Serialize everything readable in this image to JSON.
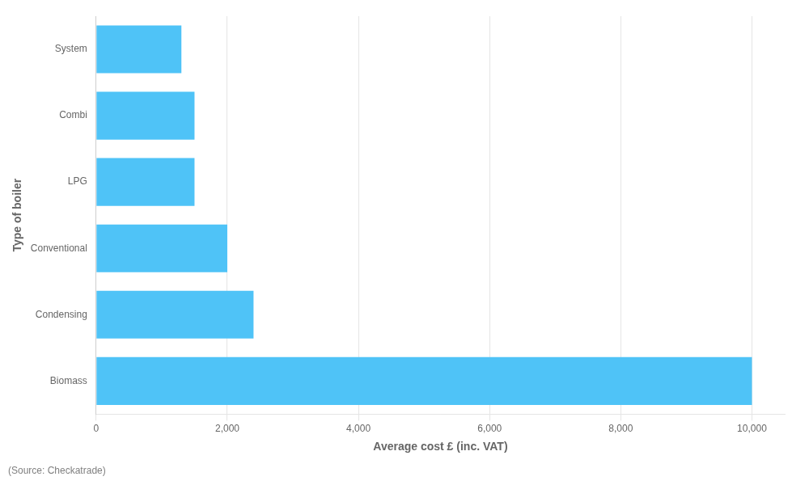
{
  "chart_data": {
    "type": "bar",
    "orientation": "horizontal",
    "categories": [
      "Biomass",
      "Condensing",
      "Conventional",
      "LPG",
      "Combi",
      "System"
    ],
    "values": [
      10000,
      2400,
      2000,
      1500,
      1500,
      1300
    ],
    "color": "#4FC3F7",
    "xlabel": "Average cost £ (inc. VAT)",
    "ylabel": "Type of boiler",
    "xlim": [
      0,
      10500
    ],
    "xticks": [
      0,
      {
        "value": 2000,
        "label": "2,000"
      },
      {
        "value": 4000,
        "label": "4,000"
      },
      {
        "value": 6000,
        "label": "6,000"
      },
      {
        "value": 8000,
        "label": "8,000"
      },
      {
        "value": 10000,
        "label": "10,000"
      }
    ],
    "grid": true,
    "annotations": [
      "(Source: Checkatrade)"
    ]
  }
}
